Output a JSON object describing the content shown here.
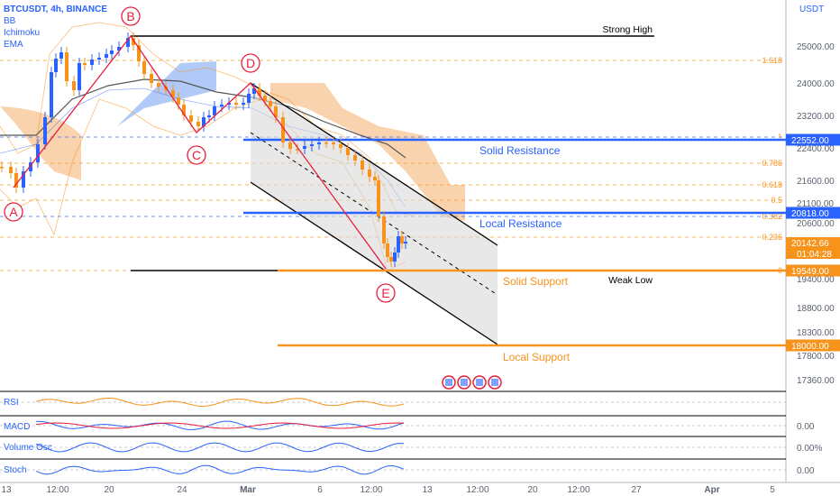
{
  "header": {
    "symbol": "BTCUSDT, 4h, BINANCE",
    "indicators": [
      "BB",
      "Ichimoku",
      "EMA"
    ]
  },
  "price_axis": {
    "currency": "USDT",
    "ticks": [
      "25000.00",
      "24000.00",
      "23200.00",
      "22400.00",
      "21600.00",
      "21100.00",
      "20600.00",
      "19400.00",
      "18800.00",
      "18300.00",
      "17800.00",
      "17360.00"
    ],
    "badges": [
      {
        "value": "22552.00",
        "color": "#2962ff"
      },
      {
        "value": "20818.00",
        "color": "#2962ff"
      },
      {
        "value": "20142.66",
        "sub": "01:04:28",
        "color": "#f7931a"
      },
      {
        "value": "19549.00",
        "color": "#f7931a"
      },
      {
        "value": "18000.00",
        "color": "#f7931a"
      }
    ]
  },
  "time_axis": [
    "13",
    "12:00",
    "20",
    "24",
    "Mar",
    "6",
    "12:00",
    "13",
    "12:00",
    "20",
    "12:00",
    "27",
    "Apr",
    "5"
  ],
  "fib_levels": [
    {
      "label": "1.618",
      "value": 24530
    },
    {
      "label": "1",
      "value": 22650
    },
    {
      "label": "0.786",
      "value": 21940
    },
    {
      "label": "0.618",
      "value": 21410
    },
    {
      "label": "0.5",
      "value": 21100
    },
    {
      "label": "0.382",
      "value": 20730
    },
    {
      "label": "0.236",
      "value": 20260
    },
    {
      "label": "0",
      "value": 19549
    }
  ],
  "annotations": {
    "strong_high": "Strong High",
    "weak_low": "Weak Low",
    "solid_resistance": "Solid Resistance",
    "local_resistance": "Local Resistance",
    "solid_support": "Solid Support",
    "local_support": "Local Support",
    "points": [
      "A",
      "B",
      "C",
      "D",
      "E"
    ]
  },
  "sub_panels": [
    {
      "name": "RSI",
      "ticks": []
    },
    {
      "name": "MACD",
      "ticks": [
        "0.00"
      ]
    },
    {
      "name": "Volume Osc",
      "ticks": [
        "0.00%"
      ]
    },
    {
      "name": "Stoch",
      "ticks": [
        "0.00"
      ]
    }
  ],
  "chart_data": {
    "type": "line",
    "title": "BTCUSDT, 4h, BINANCE",
    "x_labels": [
      "13",
      "12:00",
      "20",
      "24",
      "Mar",
      "6",
      "12:00",
      "13",
      "12:00",
      "20",
      "12:00",
      "27",
      "Apr",
      "5"
    ],
    "series": [
      {
        "name": "",
        "points": [
          {
            "label": "A",
            "y": 21500
          },
          {
            "label": "B",
            "y": 25250
          },
          {
            "label": "C",
            "y": 23000
          },
          {
            "label": "D",
            "y": 24100
          },
          {
            "label": "E",
            "y": 19549
          },
          {
            "label": "last",
            "y": 20142.66
          }
        ]
      }
    ],
    "levels": [
      {
        "name": "Solid Resistance",
        "y": 22552.0
      },
      {
        "name": "Local Resistance",
        "y": 20818.0
      },
      {
        "name": "Solid Support",
        "y": 19549.0
      },
      {
        "name": "Local Support",
        "y": 18000.0
      }
    ]
  }
}
